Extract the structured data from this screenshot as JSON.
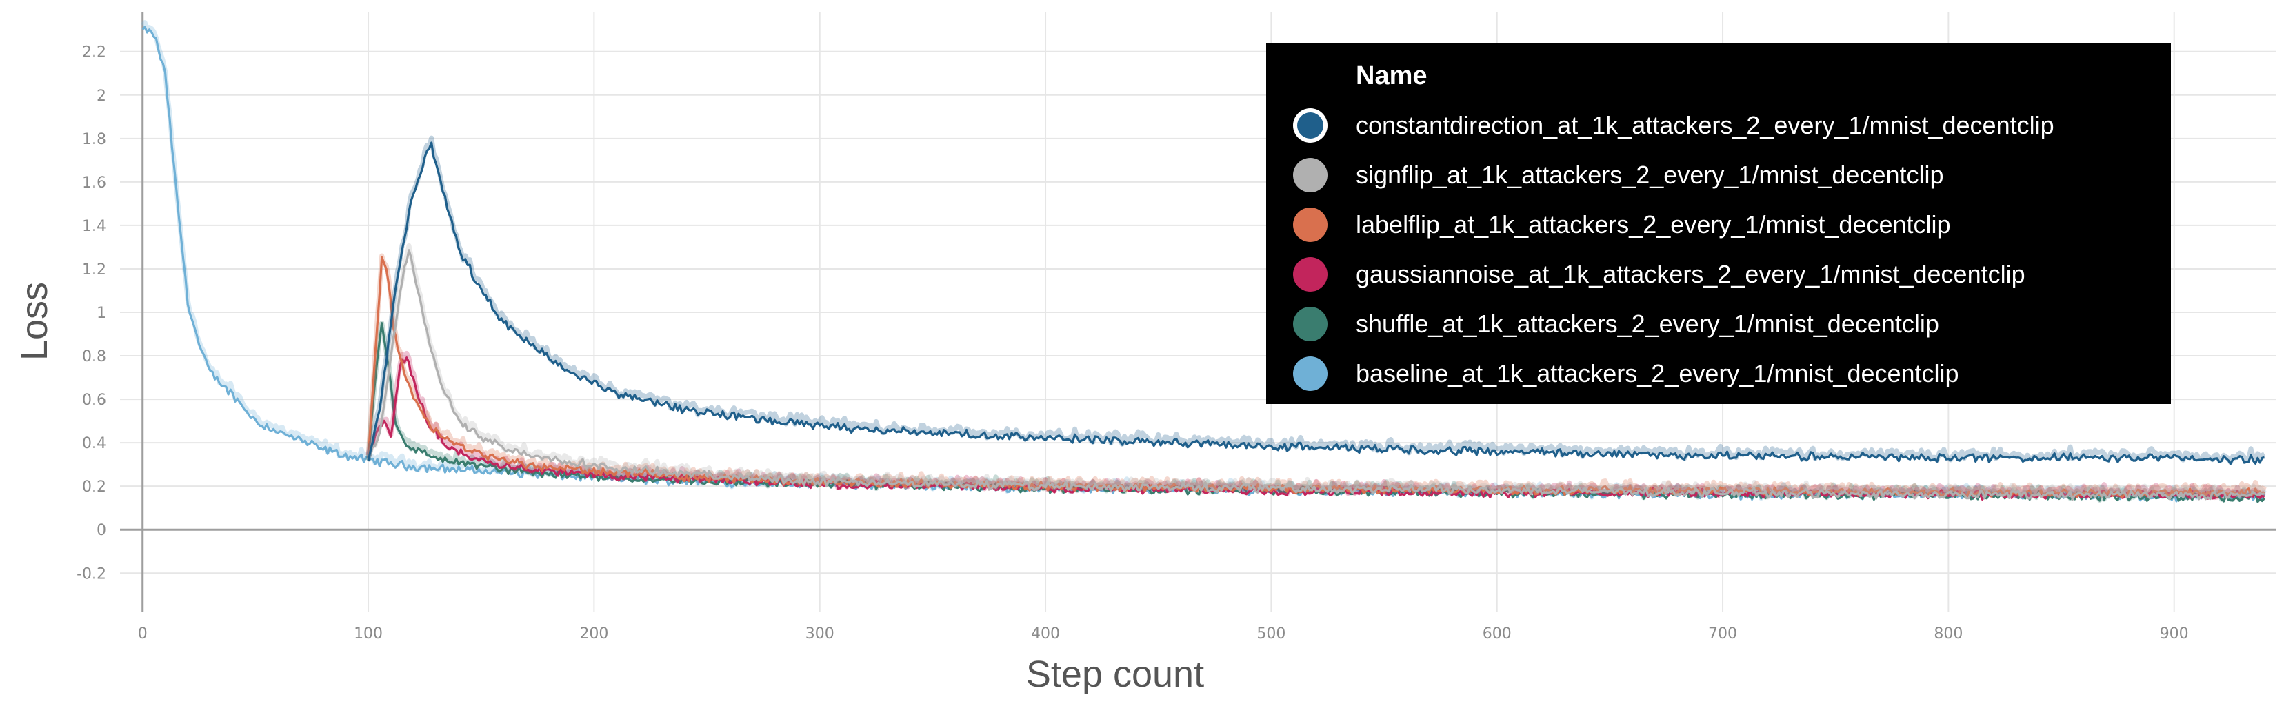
{
  "chart_data": {
    "type": "line",
    "title": "",
    "xlabel": "Step count",
    "ylabel": "Loss",
    "xlim": [
      -10,
      945
    ],
    "ylim": [
      -0.38,
      2.38
    ],
    "x_ticks": [
      0,
      100,
      200,
      300,
      400,
      500,
      600,
      700,
      800,
      900
    ],
    "y_ticks": [
      -0.2,
      0,
      0.2,
      0.4,
      0.6,
      0.8,
      1,
      1.2,
      1.4,
      1.6,
      1.8,
      2,
      2.2
    ],
    "grid": true,
    "legend_position": "top-right",
    "legend_header": "Name",
    "series": [
      {
        "name": "constantdirection_at_1k_attackers_2_every_1/mnist_decentclip",
        "color": "#1f5f8b",
        "x": [
          100,
          105,
          110,
          115,
          120,
          125,
          128,
          132,
          140,
          150,
          160,
          175,
          190,
          210,
          240,
          280,
          320,
          380,
          450,
          520,
          600,
          700,
          800,
          900,
          940
        ],
        "y": [
          0.32,
          0.55,
          0.95,
          1.3,
          1.55,
          1.7,
          1.77,
          1.6,
          1.3,
          1.1,
          0.95,
          0.83,
          0.72,
          0.63,
          0.55,
          0.5,
          0.46,
          0.43,
          0.4,
          0.38,
          0.36,
          0.34,
          0.33,
          0.33,
          0.32
        ]
      },
      {
        "name": "signflip_at_1k_attackers_2_every_1/mnist_decentclip",
        "color": "#b0b0b0",
        "x": [
          100,
          105,
          110,
          115,
          118,
          122,
          127,
          133,
          140,
          150,
          165,
          185,
          210,
          250,
          300,
          400,
          500,
          600,
          700,
          800,
          900,
          940
        ],
        "y": [
          0.32,
          0.45,
          0.8,
          1.15,
          1.3,
          1.1,
          0.85,
          0.65,
          0.5,
          0.42,
          0.36,
          0.32,
          0.28,
          0.25,
          0.22,
          0.2,
          0.19,
          0.18,
          0.17,
          0.16,
          0.16,
          0.16
        ]
      },
      {
        "name": "labelflip_at_1k_attackers_2_every_1/mnist_decentclip",
        "color": "#d9704e",
        "x": [
          100,
          103,
          106,
          108,
          111,
          115,
          120,
          128,
          140,
          155,
          175,
          200,
          250,
          300,
          400,
          500,
          600,
          700,
          800,
          900,
          940
        ],
        "y": [
          0.32,
          0.8,
          1.25,
          1.2,
          0.95,
          0.75,
          0.6,
          0.47,
          0.38,
          0.33,
          0.29,
          0.27,
          0.24,
          0.22,
          0.2,
          0.19,
          0.18,
          0.18,
          0.17,
          0.17,
          0.17
        ]
      },
      {
        "name": "gaussiannoise_at_1k_attackers_2_every_1/mnist_decentclip",
        "color": "#c2255c",
        "x": [
          100,
          104,
          107,
          110,
          114,
          117,
          121,
          127,
          135,
          150,
          170,
          200,
          250,
          300,
          400,
          500,
          600,
          700,
          800,
          900,
          940
        ],
        "y": [
          0.32,
          0.45,
          0.5,
          0.42,
          0.75,
          0.8,
          0.65,
          0.48,
          0.38,
          0.32,
          0.28,
          0.25,
          0.23,
          0.21,
          0.19,
          0.18,
          0.17,
          0.17,
          0.16,
          0.16,
          0.16
        ]
      },
      {
        "name": "shuffle_at_1k_attackers_2_every_1/mnist_decentclip",
        "color": "#3a7d6f",
        "x": [
          100,
          103,
          106,
          109,
          112,
          116,
          122,
          130,
          145,
          165,
          190,
          230,
          300,
          400,
          500,
          600,
          700,
          800,
          900,
          940
        ],
        "y": [
          0.32,
          0.7,
          0.95,
          0.75,
          0.5,
          0.4,
          0.36,
          0.33,
          0.3,
          0.27,
          0.25,
          0.23,
          0.21,
          0.19,
          0.18,
          0.17,
          0.16,
          0.16,
          0.15,
          0.15
        ]
      },
      {
        "name": "baseline_at_1k_attackers_2_every_1/mnist_decentclip",
        "color": "#6fb0d6",
        "x": [
          0,
          5,
          10,
          15,
          20,
          25,
          30,
          40,
          50,
          60,
          70,
          80,
          90,
          100,
          120,
          150,
          200,
          250,
          300,
          400,
          500,
          600,
          700,
          800,
          900,
          940
        ],
        "y": [
          2.3,
          2.28,
          2.1,
          1.55,
          1.05,
          0.85,
          0.72,
          0.62,
          0.5,
          0.45,
          0.41,
          0.37,
          0.34,
          0.32,
          0.29,
          0.27,
          0.24,
          0.22,
          0.21,
          0.19,
          0.18,
          0.17,
          0.16,
          0.16,
          0.15,
          0.15
        ]
      }
    ]
  }
}
